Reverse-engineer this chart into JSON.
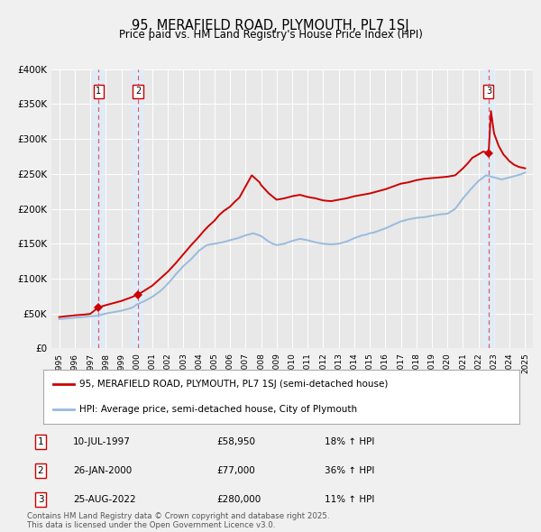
{
  "title": "95, MERAFIELD ROAD, PLYMOUTH, PL7 1SJ",
  "subtitle": "Price paid vs. HM Land Registry's House Price Index (HPI)",
  "legend_line1": "95, MERAFIELD ROAD, PLYMOUTH, PL7 1SJ (semi-detached house)",
  "legend_line2": "HPI: Average price, semi-detached house, City of Plymouth",
  "footer": "Contains HM Land Registry data © Crown copyright and database right 2025.\nThis data is licensed under the Open Government Licence v3.0.",
  "transactions": [
    {
      "num": 1,
      "date": "10-JUL-1997",
      "price": 58950,
      "hpi_change": "18% ↑ HPI",
      "year": 1997.53
    },
    {
      "num": 2,
      "date": "26-JAN-2000",
      "price": 77000,
      "hpi_change": "36% ↑ HPI",
      "year": 2000.07
    },
    {
      "num": 3,
      "date": "25-AUG-2022",
      "price": 280000,
      "hpi_change": "11% ↑ HPI",
      "year": 2022.65
    }
  ],
  "hpi_data": {
    "years": [
      1995,
      1995.25,
      1995.5,
      1995.75,
      1996,
      1996.25,
      1996.5,
      1996.75,
      1997,
      1997.25,
      1997.5,
      1997.75,
      1998,
      1998.25,
      1998.5,
      1998.75,
      1999,
      1999.25,
      1999.5,
      1999.75,
      2000,
      2000.25,
      2000.5,
      2000.75,
      2001,
      2001.25,
      2001.5,
      2001.75,
      2002,
      2002.25,
      2002.5,
      2002.75,
      2003,
      2003.25,
      2003.5,
      2003.75,
      2004,
      2004.25,
      2004.5,
      2004.75,
      2005,
      2005.25,
      2005.5,
      2005.75,
      2006,
      2006.25,
      2006.5,
      2006.75,
      2007,
      2007.25,
      2007.5,
      2007.75,
      2008,
      2008.25,
      2008.5,
      2008.75,
      2009,
      2009.25,
      2009.5,
      2009.75,
      2010,
      2010.25,
      2010.5,
      2010.75,
      2011,
      2011.25,
      2011.5,
      2011.75,
      2012,
      2012.25,
      2012.5,
      2012.75,
      2013,
      2013.25,
      2013.5,
      2013.75,
      2014,
      2014.25,
      2014.5,
      2014.75,
      2015,
      2015.25,
      2015.5,
      2015.75,
      2016,
      2016.25,
      2016.5,
      2016.75,
      2017,
      2017.25,
      2017.5,
      2017.75,
      2018,
      2018.25,
      2018.5,
      2018.75,
      2019,
      2019.25,
      2019.5,
      2019.75,
      2020,
      2020.25,
      2020.5,
      2020.75,
      2021,
      2021.25,
      2021.5,
      2021.75,
      2022,
      2022.25,
      2022.5,
      2022.75,
      2023,
      2023.25,
      2023.5,
      2023.75,
      2024,
      2024.25,
      2024.5,
      2024.75,
      2025
    ],
    "values": [
      42000,
      42500,
      43000,
      43500,
      44000,
      44500,
      45000,
      45500,
      46000,
      46500,
      47000,
      48500,
      50000,
      51000,
      52000,
      53000,
      54000,
      55500,
      57000,
      59000,
      63000,
      65500,
      68000,
      71000,
      74000,
      78000,
      82000,
      87000,
      93000,
      99000,
      106000,
      112000,
      118000,
      123000,
      128000,
      134000,
      140000,
      144000,
      148000,
      149000,
      150000,
      151000,
      152000,
      153500,
      155000,
      156500,
      158000,
      160000,
      162000,
      163500,
      165000,
      163000,
      161000,
      157000,
      153000,
      150000,
      148000,
      149000,
      150000,
      152000,
      154000,
      155500,
      157000,
      156000,
      155000,
      153500,
      152000,
      151000,
      150000,
      149500,
      149000,
      149500,
      150000,
      151500,
      153000,
      155500,
      158000,
      160000,
      162000,
      163000,
      165000,
      166000,
      168000,
      170000,
      172000,
      174500,
      177000,
      179500,
      182000,
      183500,
      185000,
      186000,
      187000,
      187500,
      188000,
      189000,
      190000,
      191000,
      192000,
      192500,
      193000,
      196500,
      200000,
      207500,
      215000,
      221500,
      228000,
      234000,
      240000,
      244000,
      248000,
      246500,
      245000,
      243500,
      242000,
      243500,
      245000,
      246500,
      248000,
      249500,
      252000
    ]
  },
  "price_data": {
    "years": [
      1995.0,
      1995.2,
      1995.4,
      1995.6,
      1995.8,
      1996.0,
      1996.3,
      1996.6,
      1997.0,
      1997.53,
      1998.0,
      1998.5,
      1999.0,
      1999.5,
      2000.07,
      2001.0,
      2002.0,
      2002.5,
      2003.0,
      2003.5,
      2004.0,
      2004.3,
      2004.6,
      2005.0,
      2005.3,
      2005.6,
      2006.0,
      2006.3,
      2006.6,
      2007.0,
      2007.2,
      2007.4,
      2007.6,
      2007.9,
      2008.0,
      2008.5,
      2009.0,
      2009.5,
      2010.0,
      2010.5,
      2011.0,
      2011.5,
      2012.0,
      2012.5,
      2013.0,
      2013.5,
      2014.0,
      2014.5,
      2015.0,
      2015.5,
      2016.0,
      2016.5,
      2017.0,
      2017.5,
      2018.0,
      2018.5,
      2019.0,
      2019.5,
      2020.0,
      2020.5,
      2021.0,
      2021.3,
      2021.6,
      2022.0,
      2022.3,
      2022.65,
      2022.8,
      2023.0,
      2023.3,
      2023.6,
      2024.0,
      2024.3,
      2024.6,
      2025.0
    ],
    "values": [
      45000,
      45500,
      46000,
      46500,
      47000,
      47500,
      48000,
      48500,
      49500,
      58950,
      62000,
      65000,
      68000,
      72000,
      77000,
      90000,
      110000,
      122000,
      135000,
      148000,
      160000,
      168000,
      175000,
      183000,
      191000,
      197000,
      203000,
      210000,
      216000,
      232000,
      240000,
      248000,
      244000,
      238000,
      234000,
      222000,
      213000,
      215000,
      218000,
      220000,
      217000,
      215000,
      212000,
      211000,
      213000,
      215000,
      218000,
      220000,
      222000,
      225000,
      228000,
      232000,
      236000,
      238000,
      241000,
      243000,
      244000,
      245000,
      246000,
      248000,
      258000,
      265000,
      273000,
      278000,
      282000,
      280000,
      340000,
      308000,
      290000,
      278000,
      268000,
      263000,
      260000,
      258000
    ]
  },
  "ylim": [
    0,
    400000
  ],
  "xlim": [
    1994.5,
    2025.5
  ],
  "bg_color": "#f0f0f0",
  "plot_bg_color": "#e8e8e8",
  "red_color": "#cc0000",
  "blue_color": "#99bbdd",
  "grid_color": "#ffffff",
  "shade_color": "#ddeeff",
  "dashed_color": "#dd4444"
}
